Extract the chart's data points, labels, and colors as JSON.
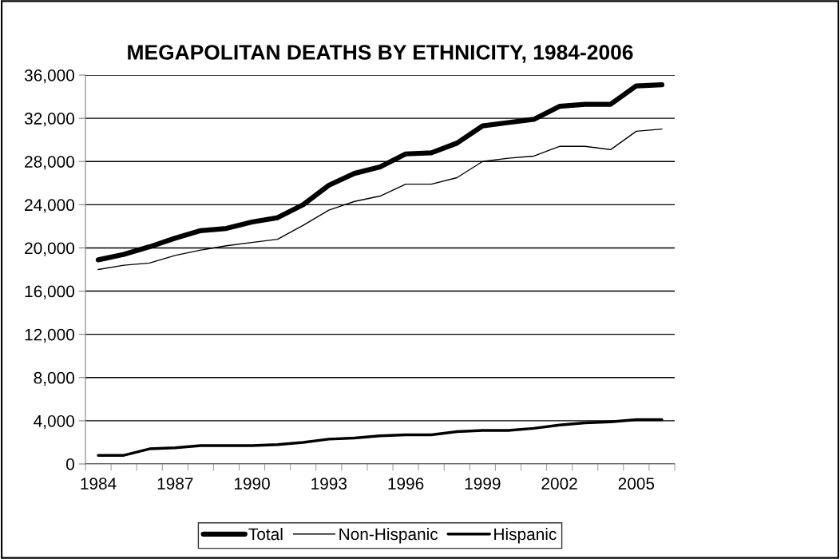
{
  "chart_data": {
    "type": "line",
    "title": "MEGAPOLITAN DEATHS BY ETHNICITY, 1984-2006",
    "categories": [
      "1984",
      null,
      null,
      "1987",
      null,
      null,
      "1990",
      null,
      null,
      "1993",
      null,
      null,
      "1996",
      null,
      null,
      "1999",
      null,
      null,
      "2002",
      null,
      null,
      "2005",
      null
    ],
    "series": [
      {
        "name": "Total",
        "color": "#000000",
        "values": [
          18900,
          19400,
          20100,
          20900,
          21600,
          21800,
          22400,
          22800,
          24000,
          25800,
          26900,
          27500,
          28700,
          28800,
          29700,
          31300,
          31600,
          31900,
          33100,
          33300,
          33300,
          35000,
          35100
        ]
      },
      {
        "name": "Non-Hispanic",
        "color": "#000000",
        "values": [
          18000,
          18400,
          18600,
          19300,
          19800,
          20200,
          20500,
          20800,
          22100,
          23500,
          24300,
          24800,
          25900,
          25900,
          26500,
          28000,
          28300,
          28500,
          29400,
          29400,
          29100,
          30800,
          31000
        ]
      },
      {
        "name": "Hispanic",
        "color": "#000000",
        "values": [
          800,
          800,
          1400,
          1500,
          1700,
          1700,
          1700,
          1800,
          2000,
          2300,
          2400,
          2600,
          2700,
          2700,
          3000,
          3100,
          3100,
          3300,
          3600,
          3800,
          3900,
          4100,
          4100
        ]
      }
    ],
    "ylim": [
      0,
      36000
    ],
    "yticks": [
      {
        "value": 0,
        "label": "0"
      },
      {
        "value": 4000,
        "label": "4,000"
      },
      {
        "value": 8000,
        "label": "8,000"
      },
      {
        "value": 12000,
        "label": "12,000"
      },
      {
        "value": 16000,
        "label": "16,000"
      },
      {
        "value": 20000,
        "label": "20,000"
      },
      {
        "value": 24000,
        "label": "24,000"
      },
      {
        "value": 28000,
        "label": "28,000"
      },
      {
        "value": 32000,
        "label": "32,000"
      },
      {
        "value": 36000,
        "label": "36,000"
      }
    ],
    "grid": "y",
    "legend": "bottom",
    "marker": "none",
    "line_style": "solid"
  }
}
